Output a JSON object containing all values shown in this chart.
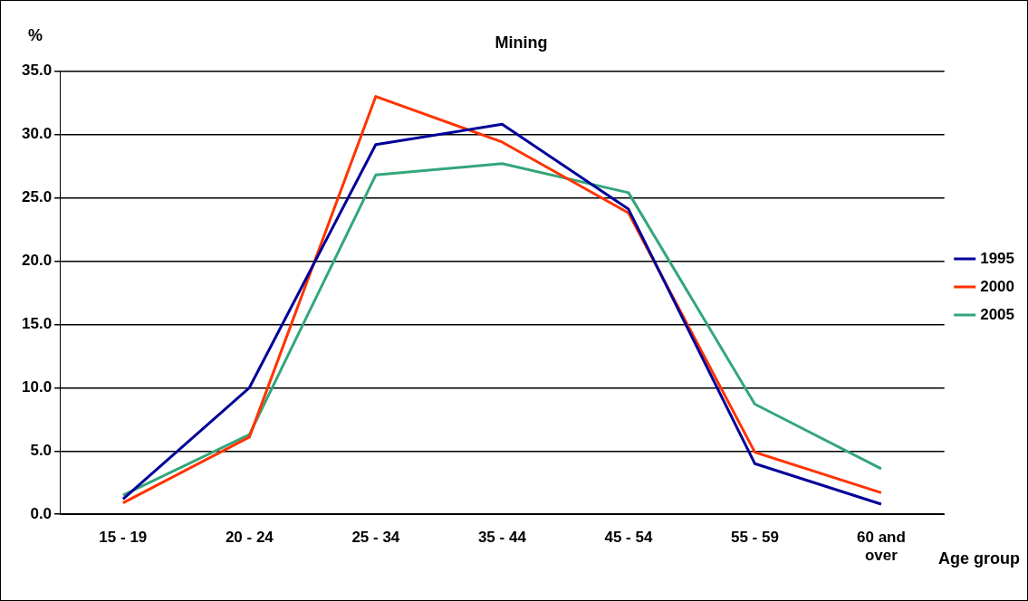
{
  "chart_data": {
    "type": "line",
    "title": "Mining",
    "ylabel": "%",
    "xlabel": "Age group",
    "categories": [
      "15 - 19",
      "20 - 24",
      "25 - 34",
      "35 - 44",
      "45 - 54",
      "55 - 59",
      "60 and over"
    ],
    "series": [
      {
        "name": "1995",
        "color": "#000099",
        "values": [
          1.2,
          10.0,
          29.2,
          30.8,
          24.1,
          4.0,
          0.8
        ]
      },
      {
        "name": "2000",
        "color": "#ff3300",
        "values": [
          0.9,
          6.1,
          33.0,
          29.4,
          23.8,
          4.9,
          1.7
        ]
      },
      {
        "name": "2005",
        "color": "#33a67a",
        "values": [
          1.5,
          6.3,
          26.8,
          27.7,
          25.4,
          8.7,
          3.6
        ]
      }
    ],
    "ylim": [
      0,
      35
    ],
    "yticks": [
      {
        "value": 0,
        "label": "0.0"
      },
      {
        "value": 5,
        "label": "5.0"
      },
      {
        "value": 10,
        "label": "10.0"
      },
      {
        "value": 15,
        "label": "15.0"
      },
      {
        "value": 20,
        "label": "20.0"
      },
      {
        "value": 25,
        "label": "25.0"
      },
      {
        "value": 30,
        "label": "30.0"
      },
      {
        "value": 35,
        "label": "35.0"
      }
    ],
    "grid": "y",
    "legend": "right",
    "marker": "none",
    "line_style": "solid"
  }
}
